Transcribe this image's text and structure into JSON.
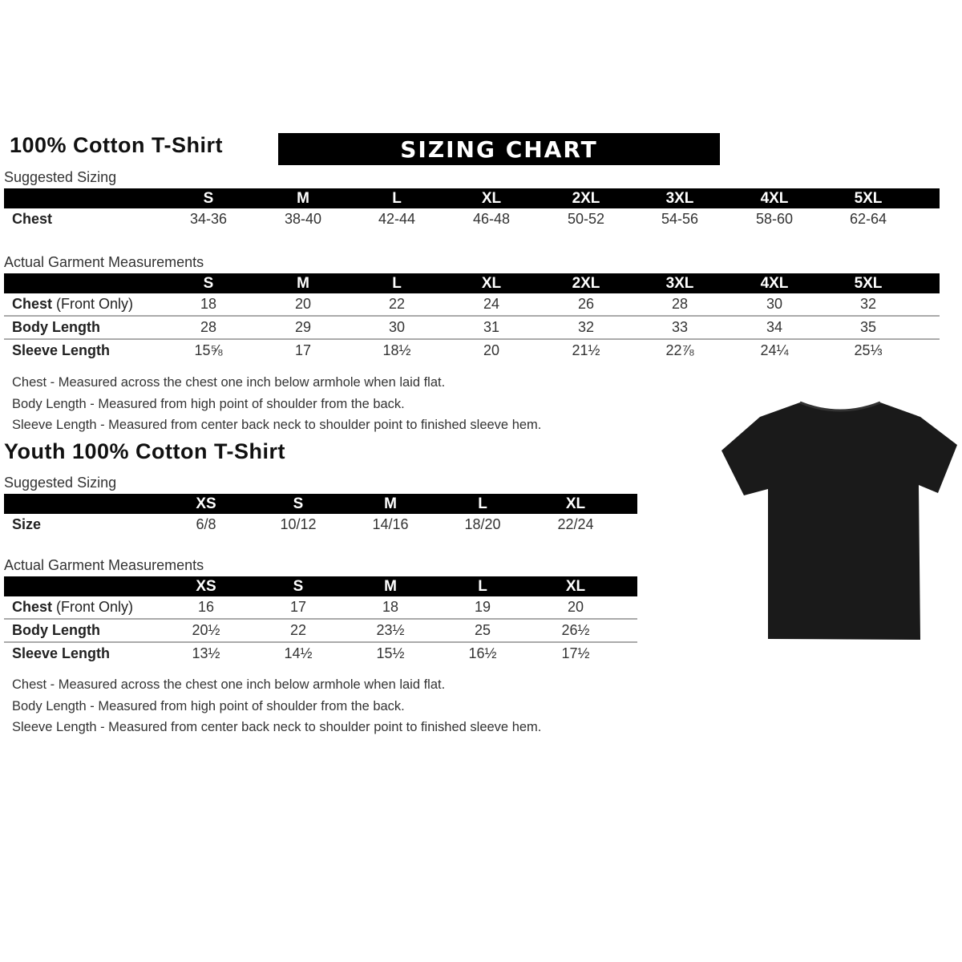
{
  "adult": {
    "title": "100% Cotton T-Shirt",
    "suggested_label": "Suggested Sizing",
    "actual_label": "Actual Garment Measurements",
    "sizes": [
      "S",
      "M",
      "L",
      "XL",
      "2XL",
      "3XL",
      "4XL",
      "5XL"
    ],
    "suggested_rows": [
      {
        "label": "Chest",
        "values": [
          "34-36",
          "38-40",
          "42-44",
          "46-48",
          "50-52",
          "54-56",
          "58-60",
          "62-64"
        ]
      }
    ],
    "actual_rows": [
      {
        "label": "Chest",
        "label_note": "(Front Only)",
        "values": [
          "18",
          "20",
          "22",
          "24",
          "26",
          "28",
          "30",
          "32"
        ]
      },
      {
        "label": "Body Length",
        "values": [
          "28",
          "29",
          "30",
          "31",
          "32",
          "33",
          "34",
          "35"
        ]
      },
      {
        "label": "Sleeve Length",
        "values": [
          "15⅝",
          "17",
          "18½",
          "20",
          "21½",
          "22⅞",
          "24¼",
          "25⅓"
        ]
      }
    ],
    "notes": [
      "Chest - Measured across the chest one inch below armhole when laid flat.",
      "Body Length - Measured from high point of shoulder from the back.",
      "Sleeve Length - Measured from center back neck to shoulder point to finished sleeve hem."
    ]
  },
  "banner": "SIZING CHART",
  "youth": {
    "title": "Youth 100% Cotton T-Shirt",
    "suggested_label": "Suggested Sizing",
    "actual_label": "Actual Garment Measurements",
    "sizes": [
      "XS",
      "S",
      "M",
      "L",
      "XL"
    ],
    "suggested_rows": [
      {
        "label": "Size",
        "values": [
          "6/8",
          "10/12",
          "14/16",
          "18/20",
          "22/24"
        ]
      }
    ],
    "actual_rows": [
      {
        "label": "Chest",
        "label_note": "(Front Only)",
        "values": [
          "16",
          "17",
          "18",
          "19",
          "20"
        ]
      },
      {
        "label": "Body Length",
        "values": [
          "20½",
          "22",
          "23½",
          "25",
          "26½"
        ]
      },
      {
        "label": "Sleeve Length",
        "values": [
          "13½",
          "14½",
          "15½",
          "16½",
          "17½"
        ]
      }
    ],
    "notes": [
      "Chest - Measured across the chest one inch below armhole when laid flat.",
      "Body Length - Measured from high point of shoulder from the back.",
      "Sleeve Length - Measured from center back neck to shoulder point to finished sleeve hem."
    ]
  },
  "colors": {
    "header_bg": "#000000",
    "shirt": "#1a1a1a"
  }
}
